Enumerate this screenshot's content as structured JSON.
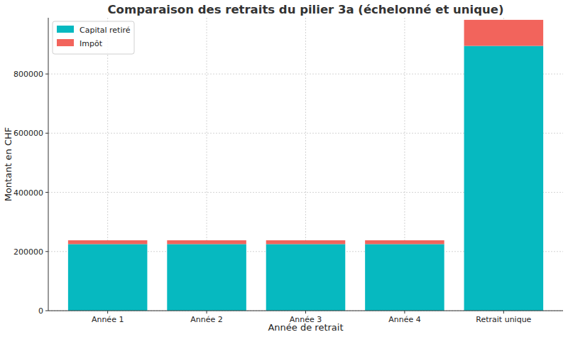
{
  "chart_data": {
    "type": "bar",
    "title": "Comparaison des retraits du pilier 3a (échelonné et unique)",
    "x_label": "Année de retrait",
    "y_label": "Montant en CHF",
    "categories": [
      "Année 1",
      "Année 2",
      "Année 3",
      "Année 4",
      "Retrait unique"
    ],
    "series": [
      {
        "name": "Capital retiré",
        "color": "#06b9c0",
        "values": [
          225000,
          225000,
          225000,
          225000,
          895000
        ]
      },
      {
        "name": "Impôt",
        "color": "#f2645c",
        "values": [
          13000,
          13000,
          13000,
          13000,
          88000
        ]
      }
    ],
    "stacked": true,
    "ylim": [
      0,
      990000
    ],
    "yticks": [
      0,
      200000,
      400000,
      600000,
      800000
    ],
    "grid": true,
    "legend": "upper left"
  }
}
